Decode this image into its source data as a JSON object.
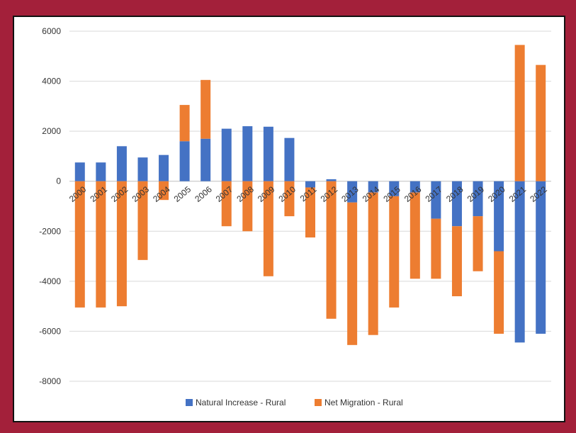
{
  "chart_data": {
    "type": "bar",
    "stacked": true,
    "categories": [
      "2000",
      "2001",
      "2002",
      "2003",
      "2004",
      "2005",
      "2006",
      "2007",
      "2008",
      "2009",
      "2010",
      "2011",
      "2012",
      "2013",
      "2014",
      "2015",
      "2016",
      "2017",
      "2018",
      "2019",
      "2020",
      "2021",
      "2022"
    ],
    "series": [
      {
        "name": "Natural Increase - Rural",
        "color": "#4472c4",
        "values": [
          750,
          750,
          1400,
          950,
          1050,
          1600,
          1700,
          2100,
          2200,
          2180,
          1730,
          -250,
          80,
          -850,
          -450,
          -600,
          -450,
          -1500,
          -1800,
          -1400,
          -2800,
          -6450,
          -6100
        ]
      },
      {
        "name": "Net Migration - Rural",
        "color": "#ed7d31",
        "values": [
          -5050,
          -5050,
          -5000,
          -3150,
          -750,
          1450,
          2350,
          -1800,
          -2000,
          -3800,
          -1400,
          -2000,
          -5500,
          -5700,
          -5700,
          -4450,
          -3450,
          -2400,
          -2800,
          -2200,
          -3300,
          5450,
          4650
        ]
      }
    ],
    "ylim": [
      -8000,
      6000
    ],
    "yticks": [
      -8000,
      -6000,
      -4000,
      -2000,
      0,
      2000,
      4000,
      6000
    ],
    "grid": true,
    "legend": "bottom",
    "title": "",
    "xlabel": "",
    "ylabel": ""
  }
}
